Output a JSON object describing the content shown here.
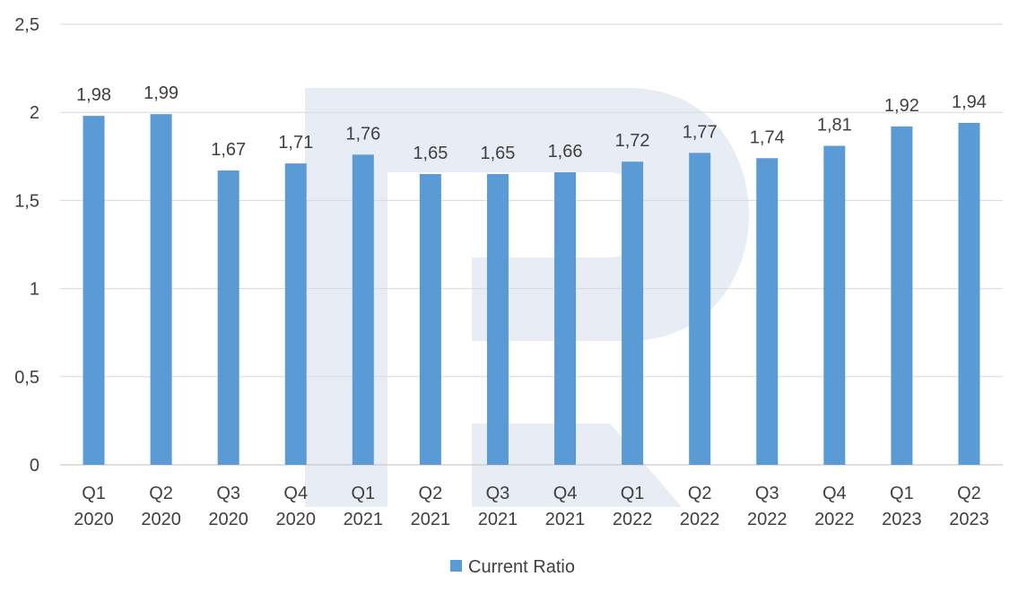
{
  "chart_data": {
    "type": "bar",
    "title": "",
    "xlabel": "",
    "ylabel": "",
    "ylim": [
      0,
      2.5
    ],
    "yticks": [
      "0",
      "0,5",
      "1",
      "1,5",
      "2",
      "2,5"
    ],
    "ytick_values": [
      0,
      0.5,
      1,
      1.5,
      2,
      2.5
    ],
    "grid": true,
    "legend_position": "bottom",
    "categories": [
      [
        "Q1",
        "2020"
      ],
      [
        "Q2",
        "2020"
      ],
      [
        "Q3",
        "2020"
      ],
      [
        "Q4",
        "2020"
      ],
      [
        "Q1",
        "2021"
      ],
      [
        "Q2",
        "2021"
      ],
      [
        "Q3",
        "2021"
      ],
      [
        "Q4",
        "2021"
      ],
      [
        "Q1",
        "2022"
      ],
      [
        "Q2",
        "2022"
      ],
      [
        "Q3",
        "2022"
      ],
      [
        "Q4",
        "2022"
      ],
      [
        "Q1",
        "2023"
      ],
      [
        "Q2",
        "2023"
      ]
    ],
    "series": [
      {
        "name": "Current Ratio",
        "color": "#5b9bd5",
        "values": [
          1.98,
          1.99,
          1.67,
          1.71,
          1.76,
          1.65,
          1.65,
          1.66,
          1.72,
          1.77,
          1.74,
          1.81,
          1.92,
          1.94
        ],
        "labels": [
          "1,98",
          "1,99",
          "1,67",
          "1,71",
          "1,76",
          "1,65",
          "1,65",
          "1,66",
          "1,72",
          "1,77",
          "1,74",
          "1,81",
          "1,92",
          "1,94"
        ]
      }
    ],
    "colors": {
      "gridline": "#d9d9d9",
      "axis": "#bfbfbf",
      "text": "#404040"
    }
  }
}
